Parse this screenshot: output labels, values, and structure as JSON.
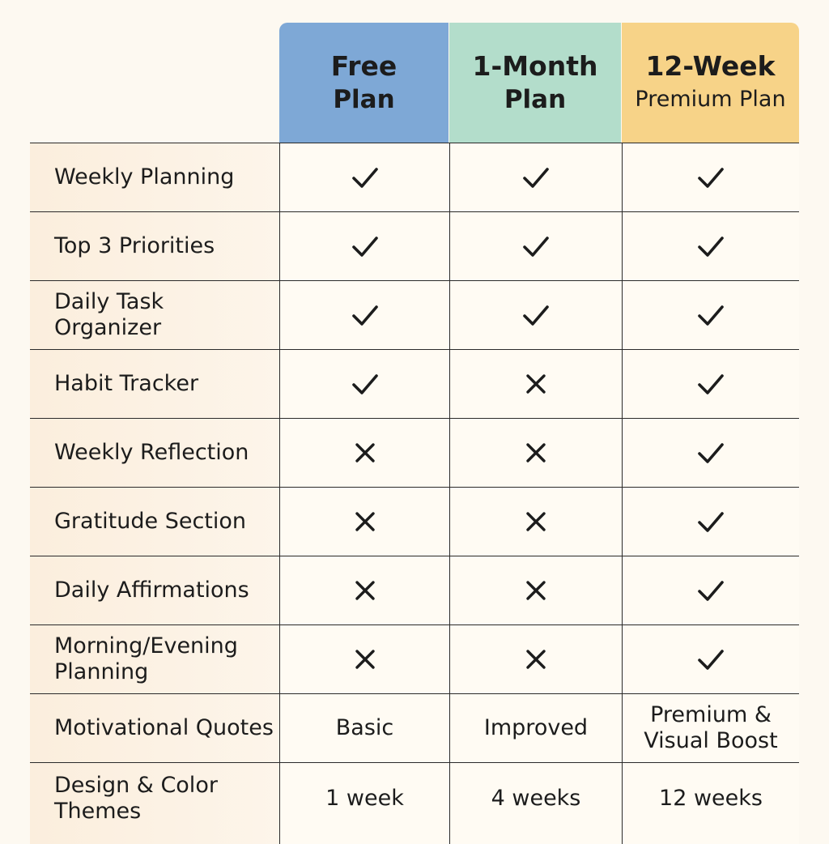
{
  "headers": [
    {
      "line1": "Free",
      "line2": "Plan"
    },
    {
      "line1": "1-Month",
      "line2": "Plan"
    },
    {
      "line1": "12-Week",
      "line2": "Premium Plan"
    }
  ],
  "icons": {
    "check": "check-icon",
    "cross": "cross-icon"
  },
  "colors": {
    "free": "#7ea8d6",
    "month": "#b3ddcb",
    "week": "#f7d388"
  },
  "rows": [
    {
      "feature": "Weekly Planning",
      "values": [
        "check",
        "check",
        "check"
      ]
    },
    {
      "feature": "Top 3 Priorities",
      "values": [
        "check",
        "check",
        "check"
      ]
    },
    {
      "feature": "Daily Task Organizer",
      "values": [
        "check",
        "check",
        "check"
      ]
    },
    {
      "feature": "Habit Tracker",
      "values": [
        "check",
        "cross",
        "check"
      ]
    },
    {
      "feature": "Weekly Reflection",
      "values": [
        "cross",
        "cross",
        "check"
      ]
    },
    {
      "feature": "Gratitude Section",
      "values": [
        "cross",
        "cross",
        "check"
      ]
    },
    {
      "feature": "Daily Affirmations",
      "values": [
        "cross",
        "cross",
        "check"
      ]
    },
    {
      "feature": "Morning/Evening Planning",
      "values": [
        "cross",
        "cross",
        "check"
      ]
    },
    {
      "feature": "Motivational Quotes",
      "values": [
        "Basic",
        "Improved",
        "Premium & Visual Boost"
      ]
    },
    {
      "feature": "Design & Color Themes",
      "values": [
        "1 week",
        "4 weeks",
        "12 weeks"
      ]
    }
  ]
}
